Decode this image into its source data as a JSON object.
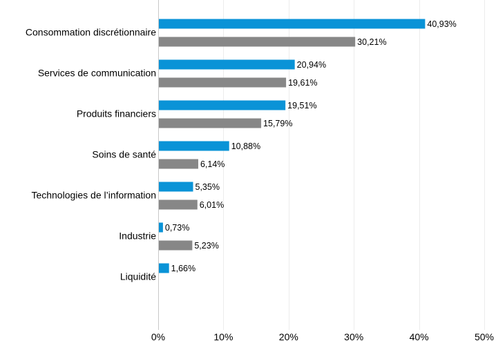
{
  "chart_data": {
    "type": "bar",
    "orientation": "horizontal",
    "title": "",
    "xlabel": "",
    "ylabel": "",
    "categories": [
      "Consommation discrétionnaire",
      "Services de communication",
      "Produits financiers",
      "Soins de santé",
      "Technologies de l’information",
      "Industrie",
      "Liquidité"
    ],
    "series": [
      {
        "color": "#0a93d7",
        "values": [
          40.93,
          20.94,
          19.51,
          10.88,
          5.35,
          0.73,
          1.66
        ],
        "labels": [
          "40,93%",
          "20,94%",
          "19,51%",
          "10,88%",
          "5,35%",
          "0,73%",
          "1,66%"
        ]
      },
      {
        "color": "#878787",
        "values": [
          30.21,
          19.61,
          15.79,
          6.14,
          6.01,
          5.23,
          null
        ],
        "labels": [
          "30,21%",
          "19,61%",
          "15,79%",
          "6,14%",
          "6,01%",
          "5,23%",
          null
        ]
      }
    ],
    "xlim": [
      0,
      50
    ],
    "xticks": [
      0,
      10,
      20,
      30,
      40,
      50
    ],
    "xtick_labels": [
      "0%",
      "10%",
      "20%",
      "30%",
      "40%",
      "50%"
    ],
    "grid": true,
    "legend": "none"
  }
}
